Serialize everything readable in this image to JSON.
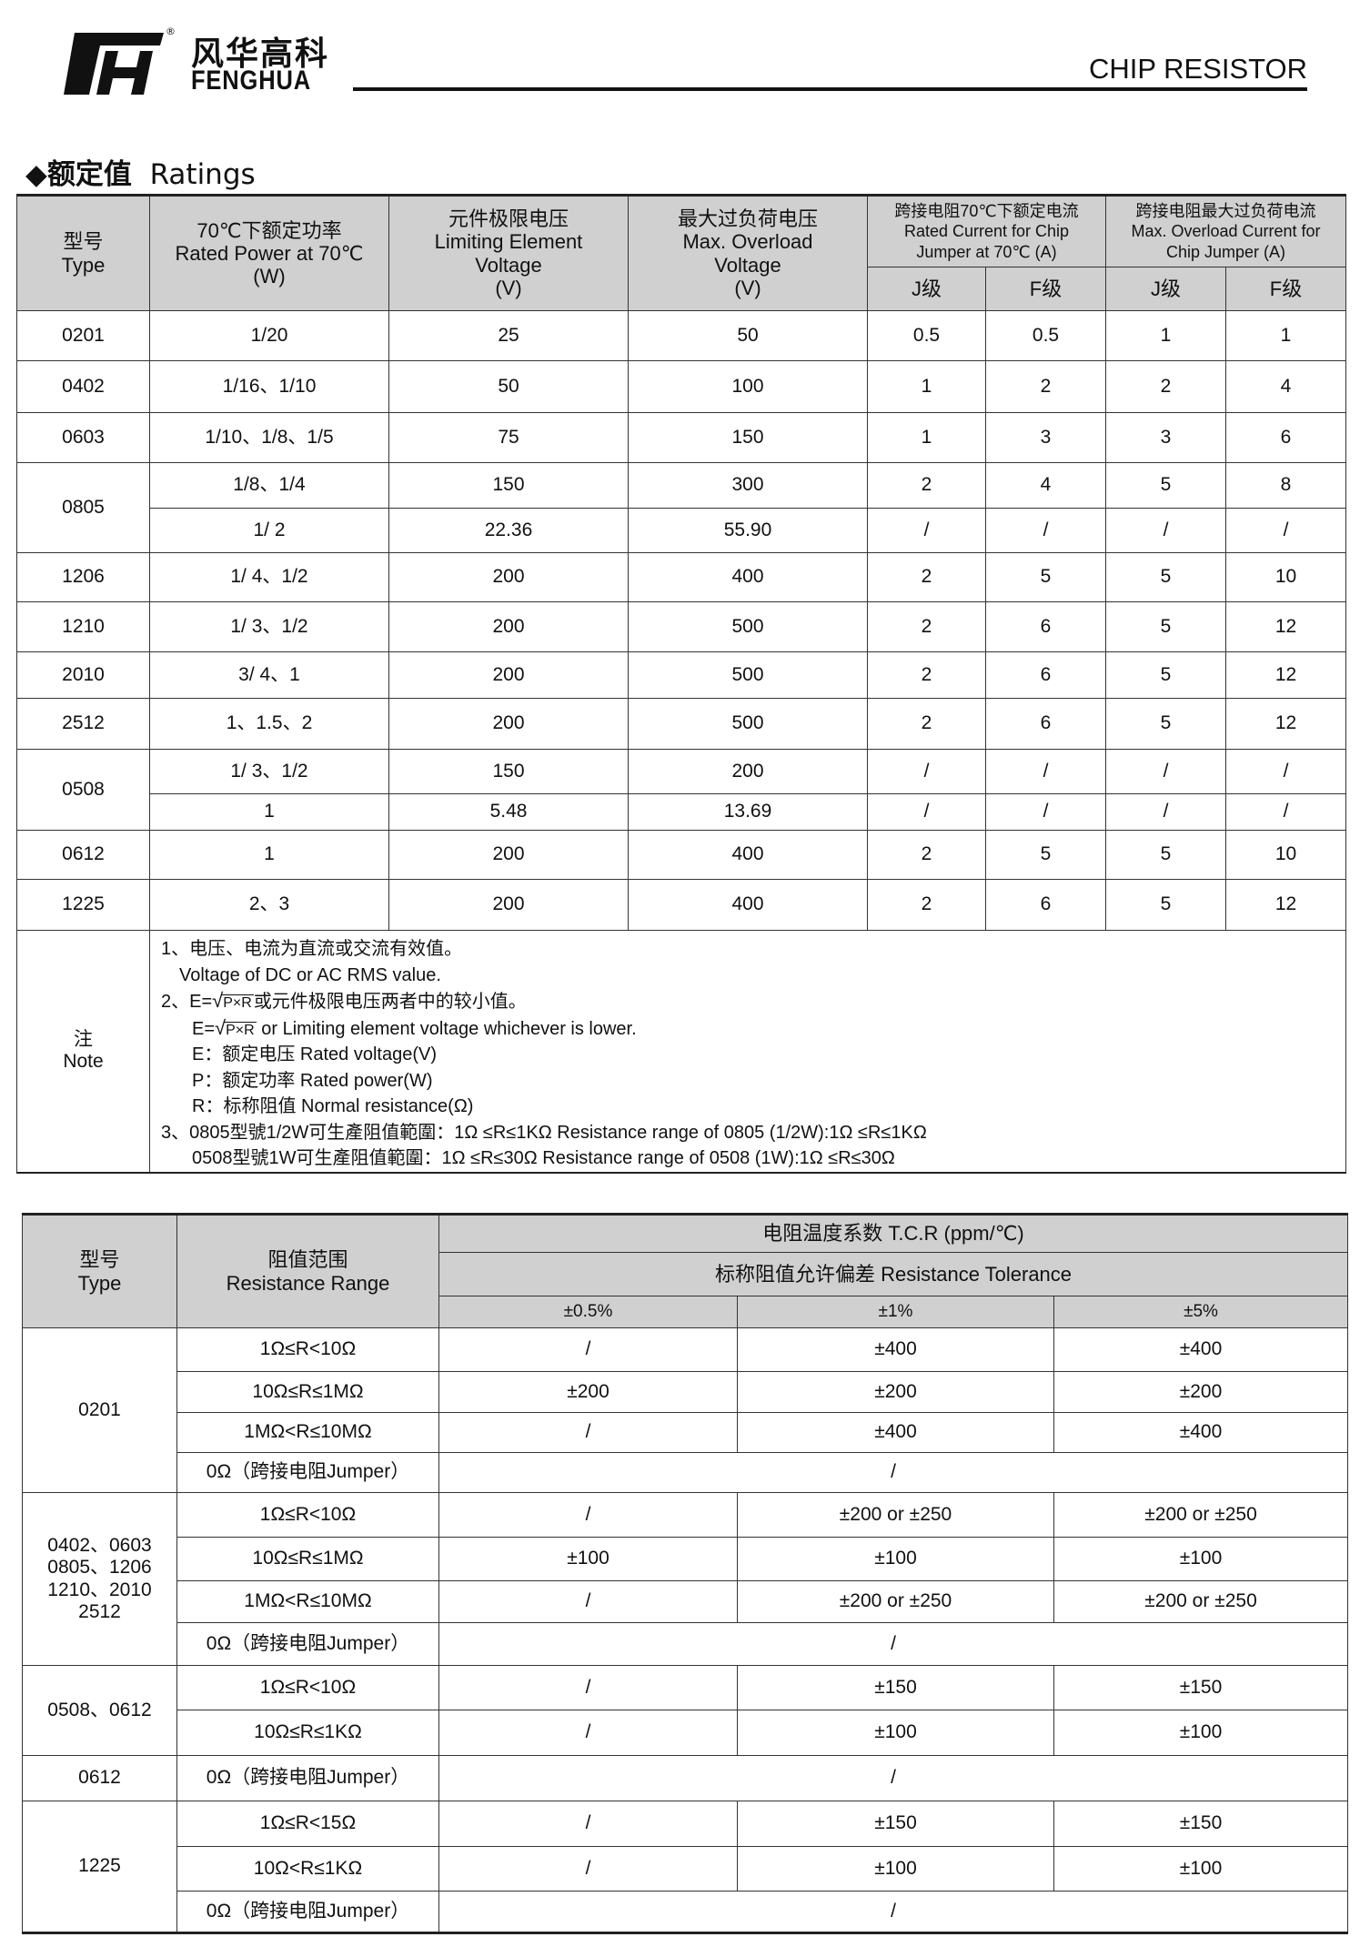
{
  "brand": {
    "cn": "风华高科",
    "en": "FENGHUA",
    "registered": "®"
  },
  "header": {
    "title": "CHIP RESISTOR"
  },
  "section": {
    "bullet": "◆",
    "title_cn": "额定值",
    "title_en": "Ratings"
  },
  "ratings": {
    "headers": {
      "type": [
        "型号",
        "Type"
      ],
      "power": [
        "70℃下额定功率",
        "Rated Power at 70℃",
        "(W)"
      ],
      "limit": [
        "元件极限电压",
        "Limiting Element",
        "Voltage",
        "(V)"
      ],
      "overload": [
        "最大过负荷电压",
        "Max. Overload",
        "Voltage",
        "(V)"
      ],
      "jumper_rated": [
        "跨接电阻70℃下额定电流",
        "Rated Current for Chip",
        "Jumper at 70℃  (A)"
      ],
      "jumper_overload": [
        "跨接电阻最大过负荷电流",
        "Max. Overload Current  for",
        "Chip Jumper  (A)"
      ],
      "grade_j": "J级",
      "grade_f": "F级"
    },
    "groups": [
      {
        "type": "0201",
        "rows": [
          [
            "1/20",
            "25",
            "50",
            "0.5",
            "0.5",
            "1",
            "1"
          ]
        ]
      },
      {
        "type": "0402",
        "rows": [
          [
            "1/16、1/10",
            "50",
            "100",
            "1",
            "2",
            "2",
            "4"
          ]
        ]
      },
      {
        "type": "0603",
        "rows": [
          [
            "1/10、1/8、1/5",
            "75",
            "150",
            "1",
            "3",
            "3",
            "6"
          ]
        ]
      },
      {
        "type": "0805",
        "rows": [
          [
            "1/8、1/4",
            "150",
            "300",
            "2",
            "4",
            "5",
            "8"
          ],
          [
            "1/ 2",
            "22.36",
            "55.90",
            "/",
            "/",
            "/",
            "/"
          ]
        ]
      },
      {
        "type": "1206",
        "rows": [
          [
            "1/ 4、1/2",
            "200",
            "400",
            "2",
            "5",
            "5",
            "10"
          ]
        ]
      },
      {
        "type": "1210",
        "rows": [
          [
            "1/ 3、1/2",
            "200",
            "500",
            "2",
            "6",
            "5",
            "12"
          ]
        ]
      },
      {
        "type": "2010",
        "rows": [
          [
            "3/ 4、1",
            "200",
            "500",
            "2",
            "6",
            "5",
            "12"
          ]
        ]
      },
      {
        "type": "2512",
        "rows": [
          [
            "1、1.5、2",
            "200",
            "500",
            "2",
            "6",
            "5",
            "12"
          ]
        ]
      },
      {
        "type": "0508",
        "rows": [
          [
            "1/ 3、1/2",
            "150",
            "200",
            "/",
            "/",
            "/",
            "/"
          ],
          [
            "1",
            "5.48",
            "13.69",
            "/",
            "/",
            "/",
            "/"
          ]
        ]
      },
      {
        "type": "0612",
        "rows": [
          [
            "1",
            "200",
            "400",
            "2",
            "5",
            "5",
            "10"
          ]
        ]
      },
      {
        "type": "1225",
        "rows": [
          [
            "2、3",
            "200",
            "400",
            "2",
            "6",
            "5",
            "12"
          ]
        ]
      }
    ],
    "note": {
      "label_cn": "注",
      "label_en": "Note",
      "line1_cn": "1、电压、电流为直流或交流有效值。",
      "line1_en": "Voltage of DC or AC RMS value.",
      "line2_prefix": "2、E=",
      "formula": "P×R",
      "line2_cn": "或元件极限电压两者中的较小值。",
      "line2b_prefix": "E=",
      "line2_en": " or Limiting element voltage whichever is lower.",
      "def_e": "E：额定电压 Rated voltage(V)",
      "def_p": "P：额定功率 Rated power(W)",
      "def_r": "R：标称阻值 Normal resistance(Ω)",
      "line3a": "3、0805型號1/2W可生產阻值範圍：1Ω ≤R≤1KΩ Resistance range of 0805 (1/2W):1Ω ≤R≤1KΩ",
      "line3b": "0508型號1W可生產阻值範圍：1Ω ≤R≤30Ω Resistance range of 0508 (1W):1Ω ≤R≤30Ω"
    }
  },
  "tcr": {
    "headers": {
      "type": [
        "型号",
        "Type"
      ],
      "range": [
        "阻值范围",
        "Resistance Range"
      ],
      "tcr": "电阻温度系数  T.C.R (ppm/℃)",
      "tolerance": "标称阻值允许偏差  Resistance Tolerance",
      "tolerances": [
        "±0.5%",
        "±1%",
        "±5%"
      ]
    },
    "groups": [
      {
        "type": [
          "0201"
        ],
        "rows": [
          [
            "1Ω≤R<10Ω",
            "/",
            "±400",
            "±400"
          ],
          [
            "10Ω≤R≤1MΩ",
            "±200",
            "±200",
            "±200"
          ],
          [
            "1MΩ<R≤10MΩ",
            "/",
            "±400",
            "±400"
          ],
          [
            "0Ω（跨接电阻Jumper）",
            "/"
          ]
        ]
      },
      {
        "type": [
          "0402、0603",
          "0805、1206",
          "1210、2010",
          "2512"
        ],
        "rows": [
          [
            "1Ω≤R<10Ω",
            "/",
            "±200 or ±250",
            "±200 or ±250"
          ],
          [
            "10Ω≤R≤1MΩ",
            "±100",
            "±100",
            "±100"
          ],
          [
            "1MΩ<R≤10MΩ",
            "/",
            "±200 or ±250",
            "±200 or ±250"
          ],
          [
            "0Ω（跨接电阻Jumper）",
            "/"
          ]
        ]
      },
      {
        "type": [
          "0508、0612"
        ],
        "rows": [
          [
            "1Ω≤R<10Ω",
            "/",
            "±150",
            "±150"
          ],
          [
            "10Ω≤R≤1KΩ",
            "/",
            "±100",
            "±100"
          ]
        ]
      },
      {
        "type": [
          "0612"
        ],
        "rows": [
          [
            "0Ω（跨接电阻Jumper）",
            "/"
          ]
        ]
      },
      {
        "type": [
          "1225"
        ],
        "rows": [
          [
            "1Ω≤R<15Ω",
            "/",
            "±150",
            "±150"
          ],
          [
            "10Ω<R≤1KΩ",
            "/",
            "±100",
            "±100"
          ],
          [
            "0Ω（跨接电阻Jumper）",
            "/"
          ]
        ]
      }
    ]
  }
}
